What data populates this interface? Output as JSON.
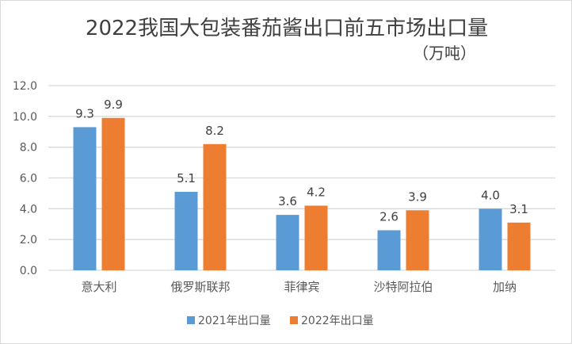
{
  "chart_data": {
    "type": "bar",
    "title": "2022我国大包装番茄酱出口前五市场出口量",
    "subtitle": "（万吨）",
    "categories": [
      "意大利",
      "俄罗斯联邦",
      "菲律宾",
      "沙特阿拉伯",
      "加纳"
    ],
    "series": [
      {
        "name": "2021年出口量",
        "values": [
          9.3,
          5.1,
          3.6,
          2.6,
          4.0
        ],
        "color": "#5b9bd5"
      },
      {
        "name": "2022年出口量",
        "values": [
          9.9,
          8.2,
          4.2,
          3.9,
          3.1
        ],
        "color": "#ed7d31"
      }
    ],
    "ylim": [
      0,
      12
    ],
    "yticks": [
      "0.0",
      "2.0",
      "4.0",
      "6.0",
      "8.0",
      "10.0",
      "12.0"
    ],
    "grid": true,
    "legend": "bottom"
  }
}
